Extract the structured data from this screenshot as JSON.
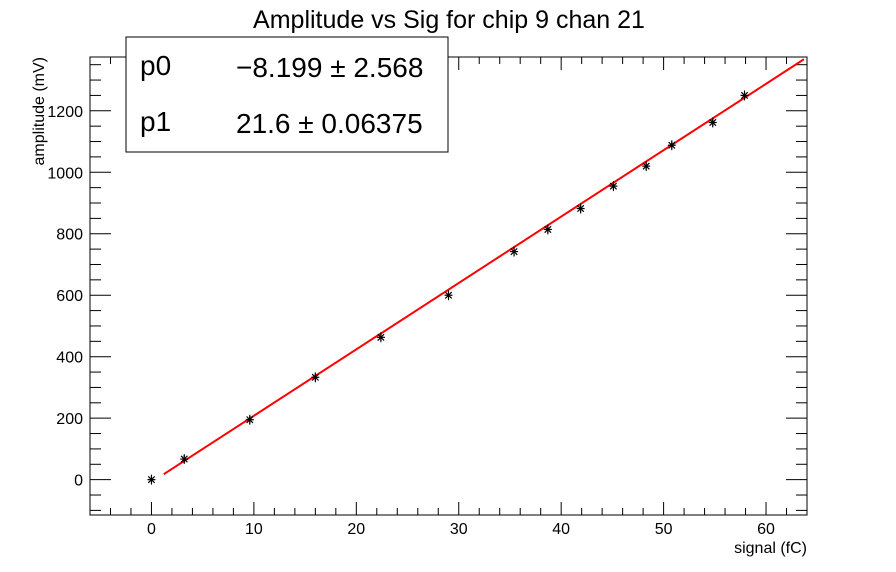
{
  "chart_data": {
    "type": "scatter",
    "title": "Amplitude vs Sig for chip 9 chan 21",
    "xlabel": "signal (fC)",
    "ylabel": "amplitude (mV)",
    "xlim": [
      -6,
      64
    ],
    "ylim": [
      -115,
      1375
    ],
    "xticks": [
      0,
      10,
      20,
      30,
      40,
      50,
      60
    ],
    "yticks": [
      0,
      200,
      400,
      600,
      800,
      1000,
      1200
    ],
    "series": [
      {
        "marker": "star",
        "color": "#000000",
        "points": [
          {
            "x": 0.0,
            "y": 0
          },
          {
            "x": 3.2,
            "y": 67
          },
          {
            "x": 9.6,
            "y": 195
          },
          {
            "x": 16.0,
            "y": 333
          },
          {
            "x": 22.4,
            "y": 463
          },
          {
            "x": 29.0,
            "y": 600
          },
          {
            "x": 35.4,
            "y": 742
          },
          {
            "x": 38.7,
            "y": 814
          },
          {
            "x": 41.9,
            "y": 882
          },
          {
            "x": 45.1,
            "y": 955
          },
          {
            "x": 48.3,
            "y": 1020
          },
          {
            "x": 50.8,
            "y": 1088
          },
          {
            "x": 54.8,
            "y": 1162
          },
          {
            "x": 57.9,
            "y": 1250
          }
        ]
      }
    ],
    "fit": {
      "color": "#ff0000",
      "x_range": [
        1.2,
        63.7
      ],
      "intercept": -8.199,
      "slope": 21.6
    },
    "stats_box": {
      "rows": [
        {
          "name": "p0",
          "value": "−8.199 ± 2.568"
        },
        {
          "name": "p1",
          "value": "21.6 ± 0.06375"
        }
      ]
    }
  }
}
